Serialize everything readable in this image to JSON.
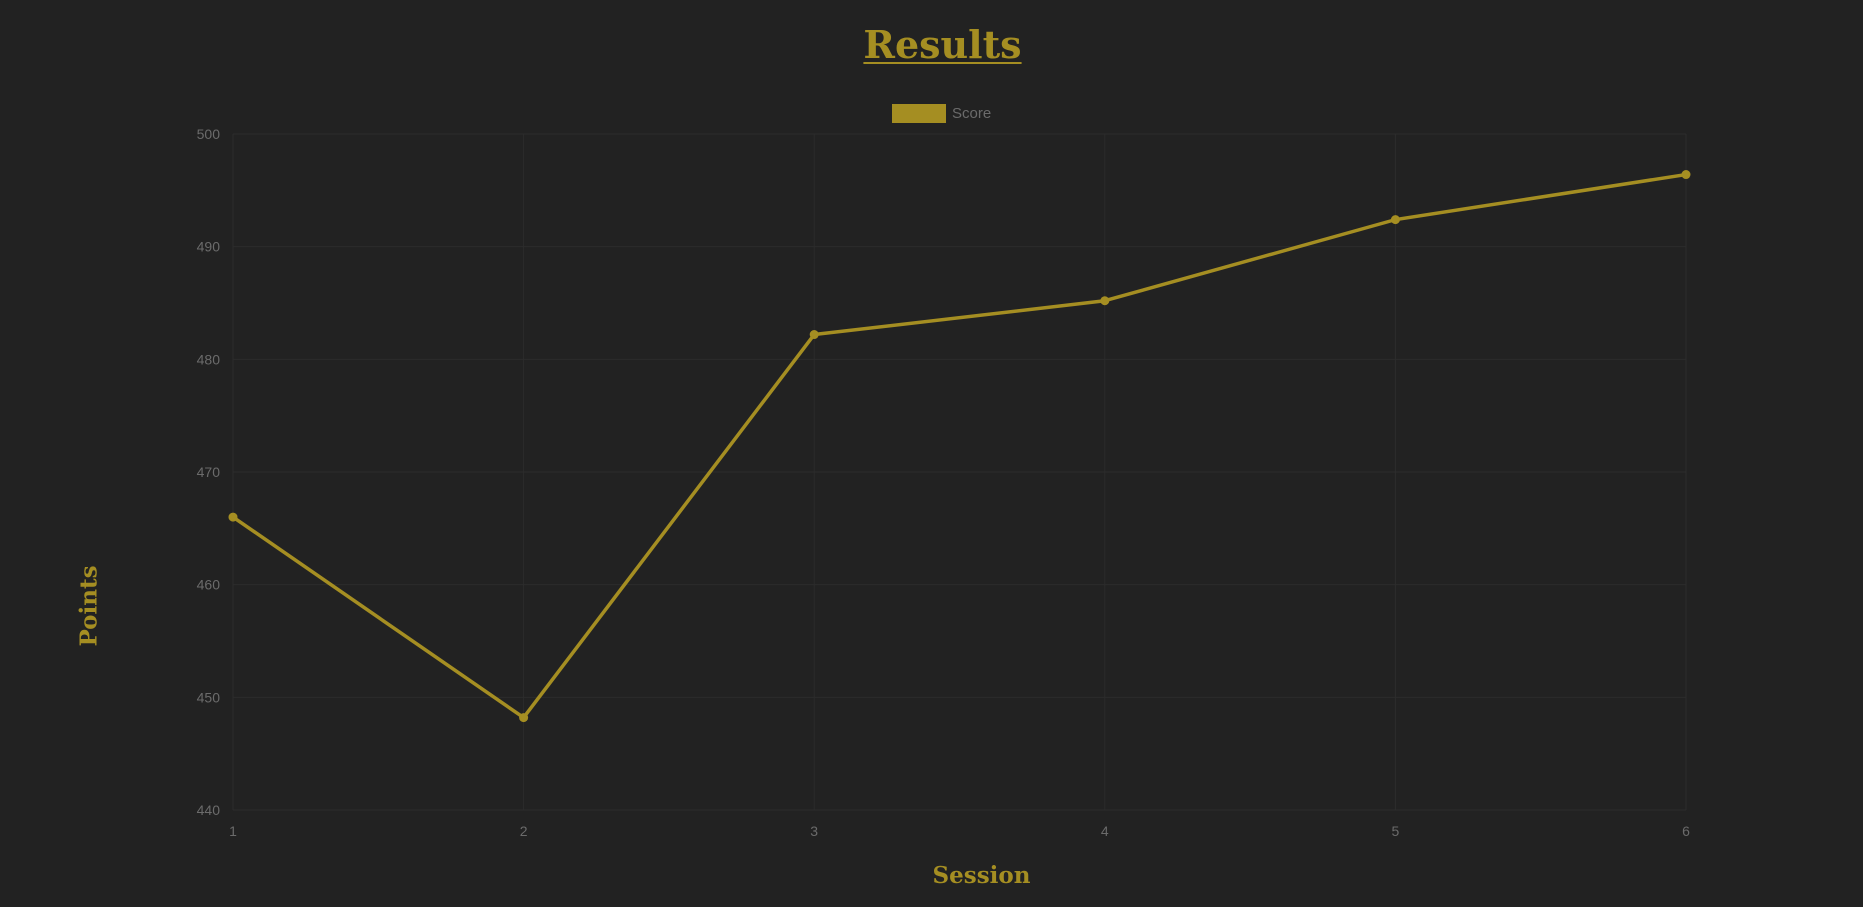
{
  "chart_data": {
    "type": "line",
    "title": "Results",
    "xlabel": "Session",
    "ylabel": "Points",
    "categories": [
      "1",
      "2",
      "3",
      "4",
      "5",
      "6"
    ],
    "series": [
      {
        "name": "Score",
        "values": [
          466,
          448.2,
          482.2,
          485.2,
          492.4,
          496.4
        ],
        "color": "#a58e22"
      }
    ],
    "ylim": [
      440,
      500
    ],
    "yticks": [
      "440",
      "450",
      "460",
      "470",
      "480",
      "490",
      "500"
    ],
    "grid": true,
    "legend_position": "top-center"
  }
}
